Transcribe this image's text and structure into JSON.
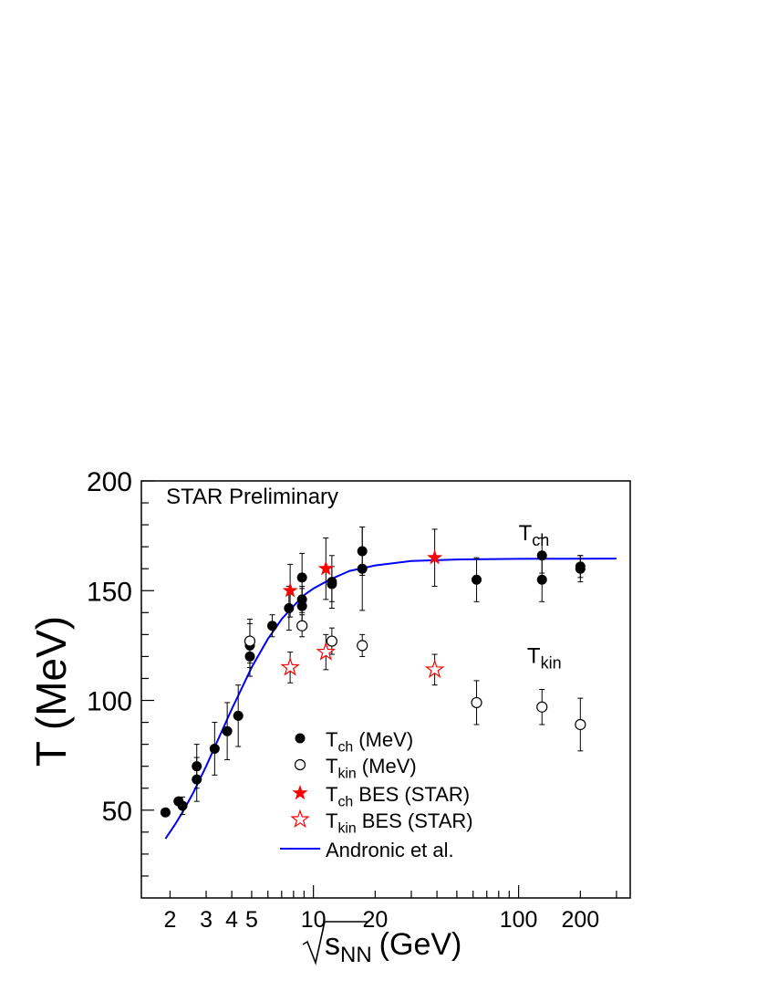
{
  "chart_data": {
    "type": "scatter",
    "x_scale": "log",
    "xlim": [
      1.45,
      350
    ],
    "ylim": [
      10,
      200
    ],
    "grid": false,
    "xlabel": {
      "main": "s",
      "sub": "NN",
      "unit": "(GeV)",
      "sqrt": true
    },
    "ylabel": "T (MeV)",
    "x_tick_labels": [
      {
        "value": 2,
        "label": "2"
      },
      {
        "value": 3,
        "label": "3"
      },
      {
        "value": 4,
        "label": "4"
      },
      {
        "value": 5,
        "label": "5"
      },
      {
        "value": 10,
        "label": "10"
      },
      {
        "value": 20,
        "label": "20"
      },
      {
        "value": 100,
        "label": "100"
      },
      {
        "value": 200,
        "label": "200"
      }
    ],
    "y_tick_labels": [
      {
        "value": 50,
        "label": "50"
      },
      {
        "value": 100,
        "label": "100"
      },
      {
        "value": 150,
        "label": "150"
      },
      {
        "value": 200,
        "label": "200"
      }
    ],
    "annotations": [
      {
        "id": "preliminary",
        "text": "STAR Preliminary",
        "x": 1.8,
        "y": 193
      },
      {
        "id": "tch-label",
        "main": "T",
        "sub": "ch",
        "x": 100,
        "y": 173
      },
      {
        "id": "tkin-label",
        "main": "T",
        "sub": "kin",
        "x": 110,
        "y": 117
      }
    ],
    "series": [
      {
        "name": "Tch (MeV)",
        "label_main": "T",
        "label_sub": "ch",
        "label_rest": " (MeV)",
        "marker": "filled-circle",
        "color": "#000000",
        "points": [
          {
            "x": 1.9,
            "y": 49,
            "err": 0
          },
          {
            "x": 2.2,
            "y": 54,
            "err": 0
          },
          {
            "x": 2.3,
            "y": 52,
            "err": 4
          },
          {
            "x": 2.7,
            "y": 64,
            "err": 10
          },
          {
            "x": 2.7,
            "y": 70,
            "err": 10
          },
          {
            "x": 3.3,
            "y": 78,
            "err": 12
          },
          {
            "x": 3.8,
            "y": 86,
            "err": 13
          },
          {
            "x": 4.3,
            "y": 93,
            "err": 14
          },
          {
            "x": 4.9,
            "y": 120,
            "err": 9
          },
          {
            "x": 4.9,
            "y": 125,
            "err": 10
          },
          {
            "x": 6.3,
            "y": 134,
            "err": 5
          },
          {
            "x": 7.6,
            "y": 142,
            "err": 10
          },
          {
            "x": 8.8,
            "y": 146,
            "err": 6
          },
          {
            "x": 8.8,
            "y": 143,
            "err": 8
          },
          {
            "x": 8.8,
            "y": 156,
            "err": 11
          },
          {
            "x": 12.3,
            "y": 154,
            "err": 12
          },
          {
            "x": 12.3,
            "y": 153,
            "err": 8
          },
          {
            "x": 17.3,
            "y": 168,
            "err": 11
          },
          {
            "x": 17.3,
            "y": 160,
            "err": 19
          },
          {
            "x": 62.4,
            "y": 155,
            "err": 10
          },
          {
            "x": 130,
            "y": 166,
            "err": 8
          },
          {
            "x": 130,
            "y": 155,
            "err": 10
          },
          {
            "x": 200,
            "y": 160,
            "err": 6
          },
          {
            "x": 200,
            "y": 161,
            "err": 5
          }
        ]
      },
      {
        "name": "Tkin (MeV)",
        "label_main": "T",
        "label_sub": "kin",
        "label_rest": " (MeV)",
        "marker": "open-circle",
        "color": "#000000",
        "points": [
          {
            "x": 4.9,
            "y": 127,
            "err": 10
          },
          {
            "x": 8.8,
            "y": 134,
            "err": 5
          },
          {
            "x": 12.3,
            "y": 127,
            "err": 6
          },
          {
            "x": 17.3,
            "y": 125,
            "err": 5
          },
          {
            "x": 62.4,
            "y": 99,
            "err": 10
          },
          {
            "x": 130,
            "y": 97,
            "err": 8
          },
          {
            "x": 200,
            "y": 89,
            "err": 12
          }
        ]
      },
      {
        "name": "Tch BES (STAR)",
        "label_main": "T",
        "label_sub": "ch",
        "label_rest": " BES (STAR)",
        "marker": "filled-star",
        "color": "#ff0000",
        "points": [
          {
            "x": 7.7,
            "y": 150,
            "err": 12
          },
          {
            "x": 11.5,
            "y": 160,
            "err": 14
          },
          {
            "x": 39,
            "y": 165,
            "err": 13
          }
        ]
      },
      {
        "name": "Tkin BES (STAR)",
        "label_main": "T",
        "label_sub": "kin",
        "label_rest": " BES (STAR)",
        "marker": "open-star",
        "color": "#ff0000",
        "points": [
          {
            "x": 7.7,
            "y": 115,
            "err": 7
          },
          {
            "x": 11.5,
            "y": 122,
            "err": 8
          },
          {
            "x": 39,
            "y": 114,
            "err": 7
          }
        ]
      },
      {
        "name": "Andronic et al.",
        "label_main": "Andronic et al.",
        "label_sub": "",
        "label_rest": "",
        "marker": "line",
        "color": "#0000ff",
        "points": [
          {
            "x": 1.9,
            "y": 37
          },
          {
            "x": 2.1,
            "y": 43
          },
          {
            "x": 2.3,
            "y": 49
          },
          {
            "x": 2.6,
            "y": 58
          },
          {
            "x": 3.0,
            "y": 70
          },
          {
            "x": 3.5,
            "y": 84
          },
          {
            "x": 4.0,
            "y": 96
          },
          {
            "x": 4.5,
            "y": 106
          },
          {
            "x": 5.0,
            "y": 115
          },
          {
            "x": 6.0,
            "y": 128
          },
          {
            "x": 7.0,
            "y": 137
          },
          {
            "x": 8.0,
            "y": 143
          },
          {
            "x": 9.0,
            "y": 148
          },
          {
            "x": 10.0,
            "y": 151
          },
          {
            "x": 12.0,
            "y": 155
          },
          {
            "x": 15.0,
            "y": 159
          },
          {
            "x": 20.0,
            "y": 161.5
          },
          {
            "x": 30.0,
            "y": 163.5
          },
          {
            "x": 50.0,
            "y": 164.2
          },
          {
            "x": 100.0,
            "y": 164.5
          },
          {
            "x": 300.0,
            "y": 164.6
          }
        ]
      }
    ],
    "legend": {
      "position": "bottom-center"
    }
  }
}
